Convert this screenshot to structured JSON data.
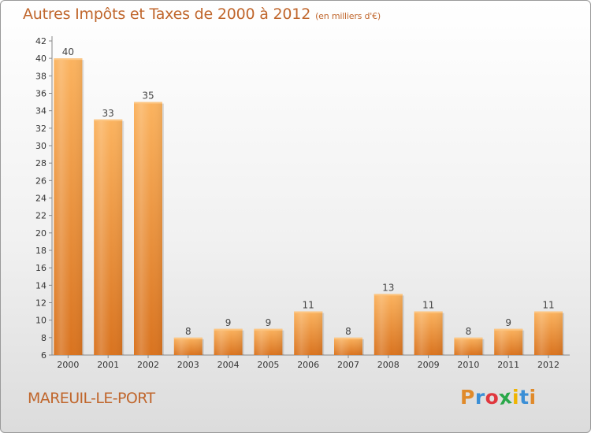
{
  "title": {
    "main": "Autres Impôts et Taxes de 2000 à 2012",
    "unit": "(en milliers d'€)"
  },
  "commune": "MAREUIL-LE-PORT",
  "logo": {
    "letters": [
      "P",
      "r",
      "o",
      "x",
      "i",
      "t",
      "i"
    ],
    "colors": [
      "#e08a2a",
      "#3b8fd6",
      "#e0373e",
      "#2aa84a",
      "#f0b400",
      "#3b8fd6",
      "#e08a2a"
    ]
  },
  "colors": {
    "bar_top": "#fbb35f",
    "bar_bottom": "#d9731f",
    "title": "#c0662c",
    "grid": "#bfbfbf"
  },
  "chart_data": {
    "type": "bar",
    "categories": [
      "2000",
      "2001",
      "2002",
      "2003",
      "2004",
      "2005",
      "2006",
      "2007",
      "2008",
      "2009",
      "2010",
      "2011",
      "2012"
    ],
    "values": [
      40,
      33,
      35,
      8,
      9,
      9,
      11,
      8,
      13,
      11,
      8,
      9,
      11
    ],
    "data_labels": [
      "40",
      "33",
      "35",
      "8",
      "9",
      "9",
      "11",
      "8",
      "13",
      "11",
      "8",
      "9",
      "11"
    ],
    "yticks": [
      "6",
      "8",
      "10",
      "12",
      "14",
      "16",
      "18",
      "20",
      "22",
      "24",
      "26",
      "28",
      "30",
      "32",
      "34",
      "36",
      "38",
      "40",
      "42"
    ],
    "ylim": [
      6,
      42
    ],
    "xlabel": "",
    "ylabel": "",
    "grid": false
  }
}
